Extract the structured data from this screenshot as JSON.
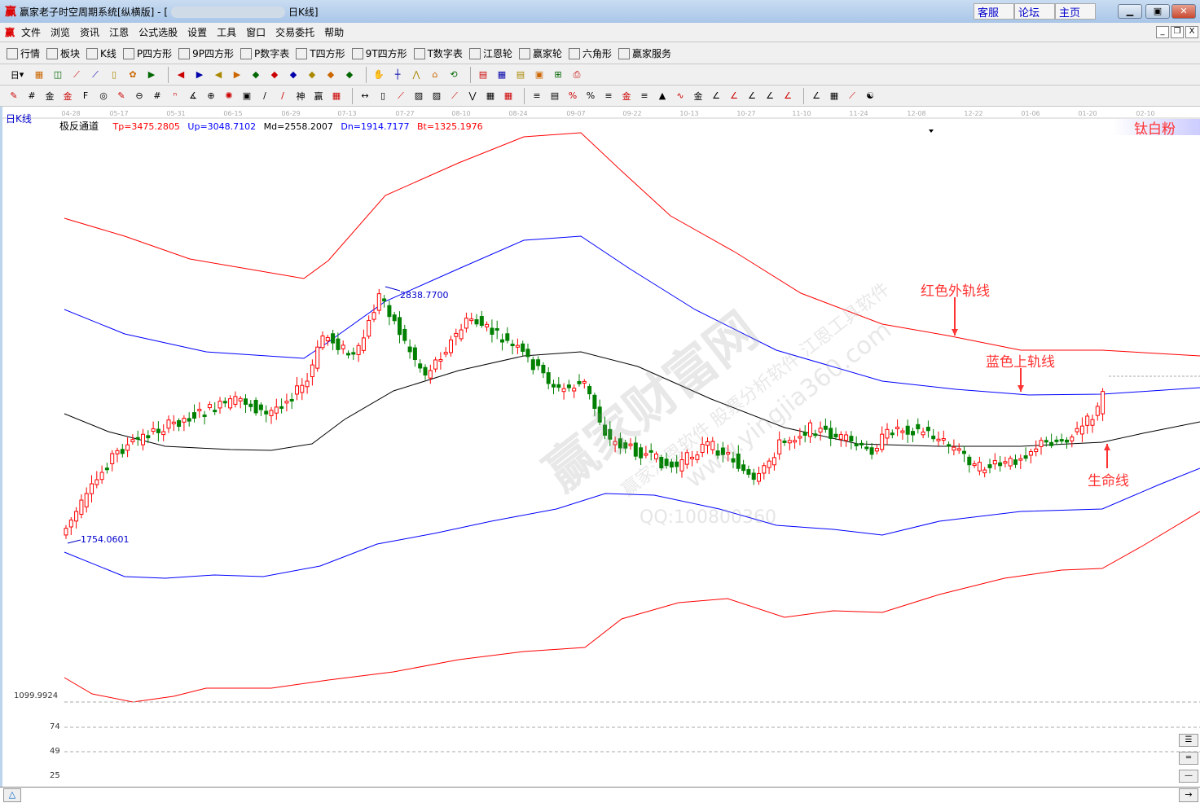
{
  "titlebar": {
    "logo": "赢",
    "title": "赢家老子时空周期系统[纵横版] - [",
    "title_end": "日K线]",
    "links": [
      "客服",
      "论坛",
      "主页"
    ],
    "controls": [
      "minimize",
      "restore",
      "close"
    ]
  },
  "menu": {
    "logo": "赢",
    "items": [
      "文件",
      "浏览",
      "资讯",
      "江恩",
      "公式选股",
      "设置",
      "工具",
      "窗口",
      "交易委托",
      "帮助"
    ]
  },
  "toolbar1": [
    {
      "icon": "quotes-table-icon",
      "label": "行情"
    },
    {
      "icon": "sector-icon",
      "label": "板块"
    },
    {
      "icon": "kline-icon",
      "label": "K线"
    },
    {
      "icon": "ps-icon",
      "label": "P四方形"
    },
    {
      "icon": "p9-icon",
      "label": "9P四方形"
    },
    {
      "icon": "pn-icon",
      "label": "P数字表"
    },
    {
      "icon": "ts-icon",
      "label": "T四方形"
    },
    {
      "icon": "t9-icon",
      "label": "9T四方形"
    },
    {
      "icon": "tn-icon",
      "label": "T数字表"
    },
    {
      "icon": "gann-wheel-icon",
      "label": "江恩轮"
    },
    {
      "icon": "winner-wheel-icon",
      "label": "赢家轮"
    },
    {
      "icon": "hexagon-icon",
      "label": "六角形"
    },
    {
      "icon": "dollar-icon",
      "label": "赢家服务"
    }
  ],
  "toolbar2": {
    "period": "日",
    "icons": [
      "grid-icon",
      "doc-icon",
      "wave3-icon",
      "wave9-icon",
      "candle-icon",
      "pattern-icon",
      "flag-icon",
      "first-icon",
      "last-icon",
      "prev-icon",
      "next-icon",
      "diamond-left-icon",
      "diamond-right-icon",
      "diamond-h-icon",
      "diamond-x-icon",
      "diamond-star-icon",
      "diamond-v-icon",
      "hand-icon",
      "crosshair-icon",
      "line-tool-icon",
      "temple-icon",
      "cycle-icon",
      "calendar-icon",
      "calculator-icon",
      "notes-icon",
      "save-icon",
      "network-icon",
      "printer-icon"
    ]
  },
  "toolbar3": {
    "icons": [
      "pen-icon",
      "hash-icon",
      "gold-icon",
      "gold2-icon",
      "fib-icon",
      "spiral-icon",
      "marker-icon",
      "circle-icon",
      "grid4-icon",
      "n2-icon",
      "angle-icon",
      "target-icon",
      "star-icon",
      "square-target-icon",
      "parallel-icon",
      "shen-icon",
      "ying-icon",
      "comb-icon",
      "measure-icon",
      "box-icon",
      "fan-icon",
      "fan-box-icon",
      "fan-box2-icon",
      "angle2-icon",
      "zigzag-icon",
      "grid-red-icon",
      "grid-box-icon",
      "hatch-icon",
      "ruler-icon",
      "percent-fan-icon",
      "percent-icon",
      "percent-lines-icon",
      "gold-circle-icon",
      "gold-lines-icon",
      "speed-icon",
      "sine-icon",
      "gold-fan-icon",
      "j-fan-icon",
      "f-fan-icon",
      "gold-fan2-icon",
      "shen-fan-icon",
      "ying-fan-icon",
      "four-fan-icon",
      "layout-icon",
      "chart-line-icon",
      "yin-yang-icon",
      "infinity-icon"
    ]
  },
  "dates": [
    "04-28",
    "05-17",
    "05-31",
    "06-15",
    "06-29",
    "07-13",
    "07-27",
    "08-10",
    "08-24",
    "09-07",
    "09-22",
    "10-13",
    "10-27",
    "11-10",
    "11-24",
    "12-08",
    "12-22",
    "01-06",
    "01-20",
    "02-10"
  ],
  "chart": {
    "period_label": "日K线",
    "indicator": "极反通道",
    "tp": "Tp=3475.2805",
    "up": "Up=3048.7102",
    "md": "Md=2558.2007",
    "dn": "Dn=1914.7177",
    "bt": "Bt=1325.1976",
    "stock_name": "钛白粉",
    "high_label": "2838.7700",
    "low_label": "1754.0601",
    "axis_label": "1099.9924",
    "annotations": {
      "red_outer": "红色外轨线",
      "blue_upper": "蓝色上轨线",
      "life_line": "生命线"
    },
    "watermark": [
      "赢家财富网",
      "赢家江恩软件 股票分析软件 江恩工具软件",
      "www.yingjia360.com",
      "QQ:100800360"
    ],
    "sub_ticks": [
      "74",
      "49",
      "25"
    ],
    "colors": {
      "tp": "#ff0000",
      "up": "#0000ff",
      "md": "#000000",
      "dn": "#0000ff",
      "bt": "#ff0000",
      "up_candle": "#ff0000",
      "down_candle": "#008000"
    }
  }
}
